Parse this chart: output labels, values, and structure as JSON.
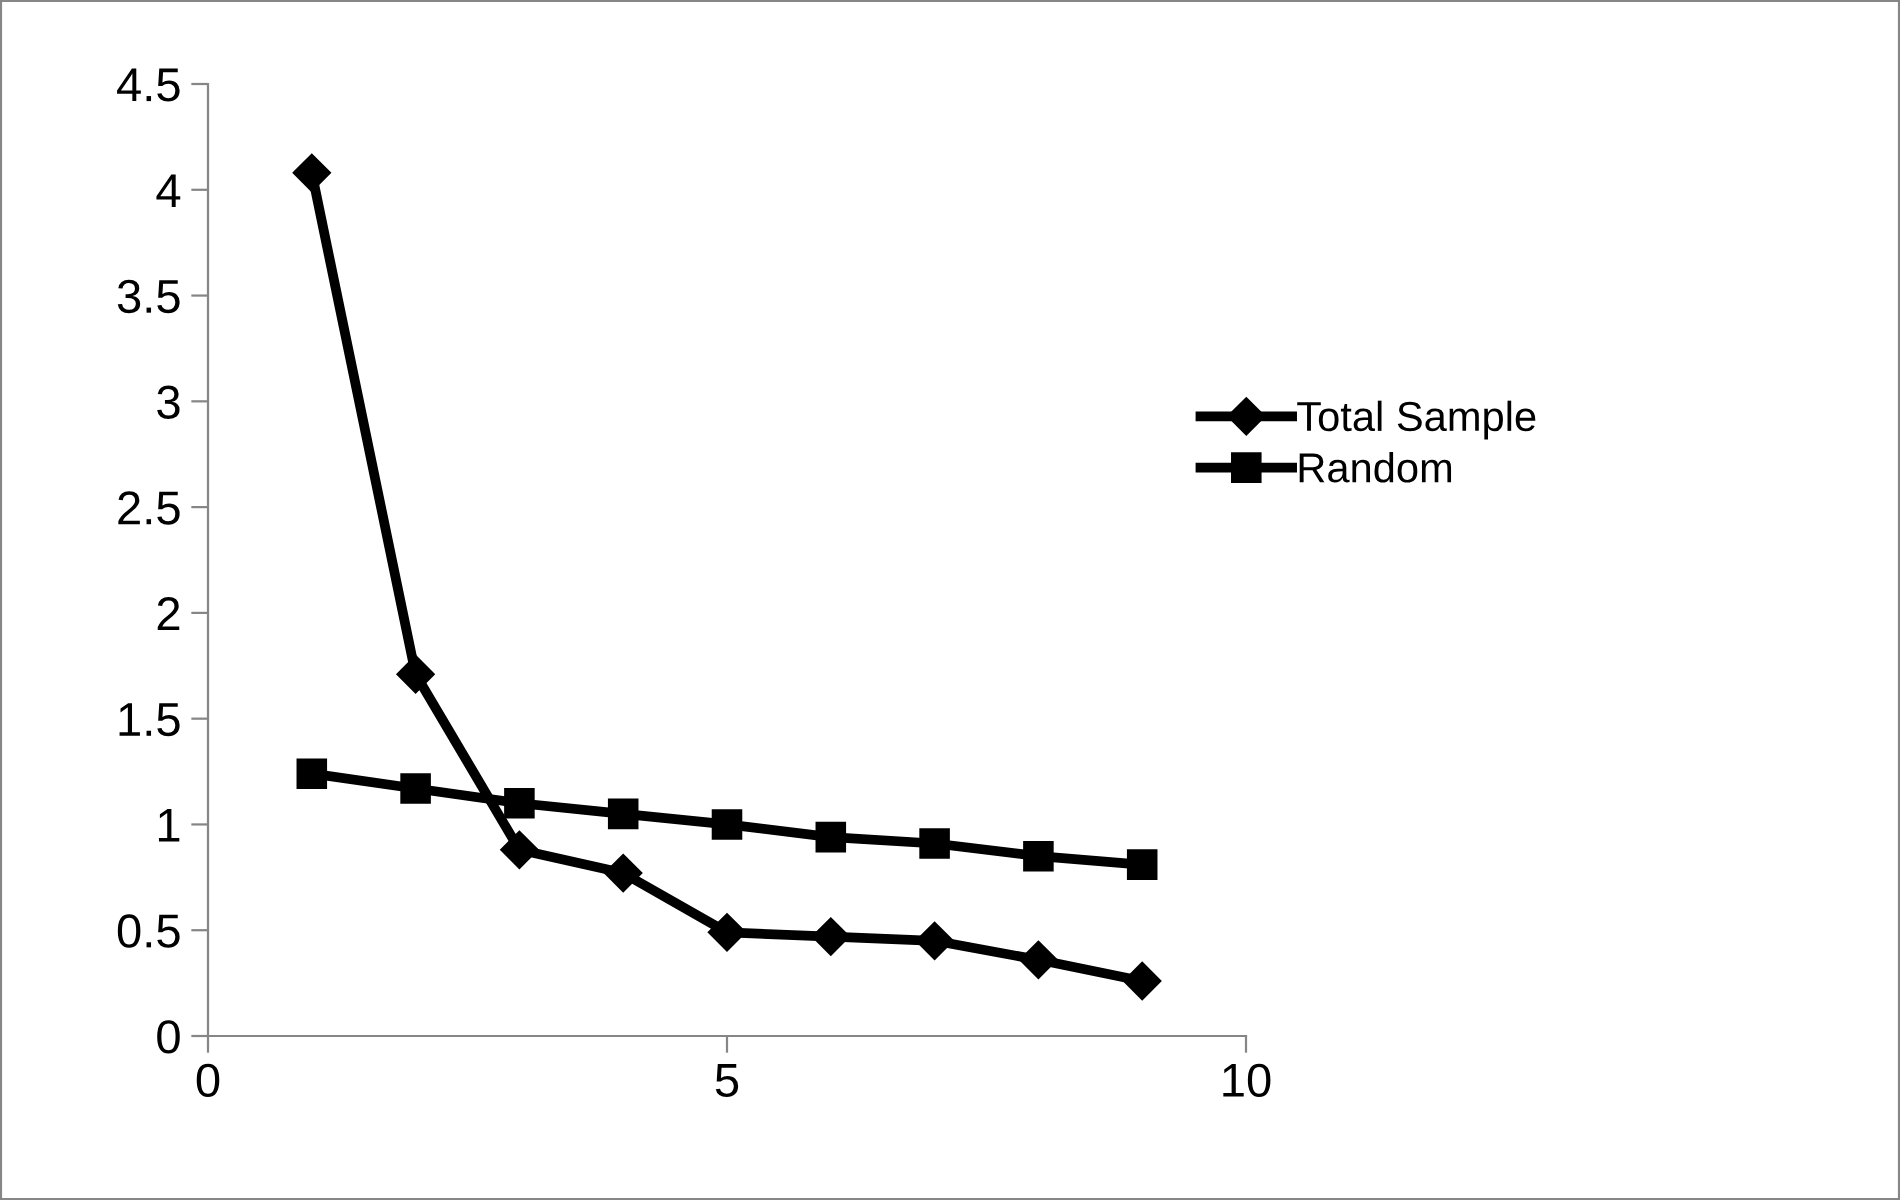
{
  "chart_data": {
    "type": "line",
    "x": [
      1,
      2,
      3,
      4,
      5,
      6,
      7,
      8,
      9
    ],
    "series": [
      {
        "name": "Total Sample",
        "color": "#000000",
        "marker": "diamond",
        "values": [
          4.08,
          1.71,
          0.88,
          0.77,
          0.49,
          0.47,
          0.45,
          0.36,
          0.26
        ]
      },
      {
        "name": "Random",
        "color": "#000000",
        "marker": "square",
        "values": [
          1.24,
          1.17,
          1.1,
          1.05,
          1.0,
          0.94,
          0.91,
          0.85,
          0.81
        ]
      }
    ],
    "xlim": [
      0,
      10
    ],
    "xticks": [
      0,
      5,
      10
    ],
    "ylim": [
      0,
      4.5
    ],
    "yticks": [
      0,
      0.5,
      1,
      1.5,
      2,
      2.5,
      3,
      3.5,
      4,
      4.5
    ],
    "grid": false,
    "legend": "right",
    "line_style": "solid"
  }
}
